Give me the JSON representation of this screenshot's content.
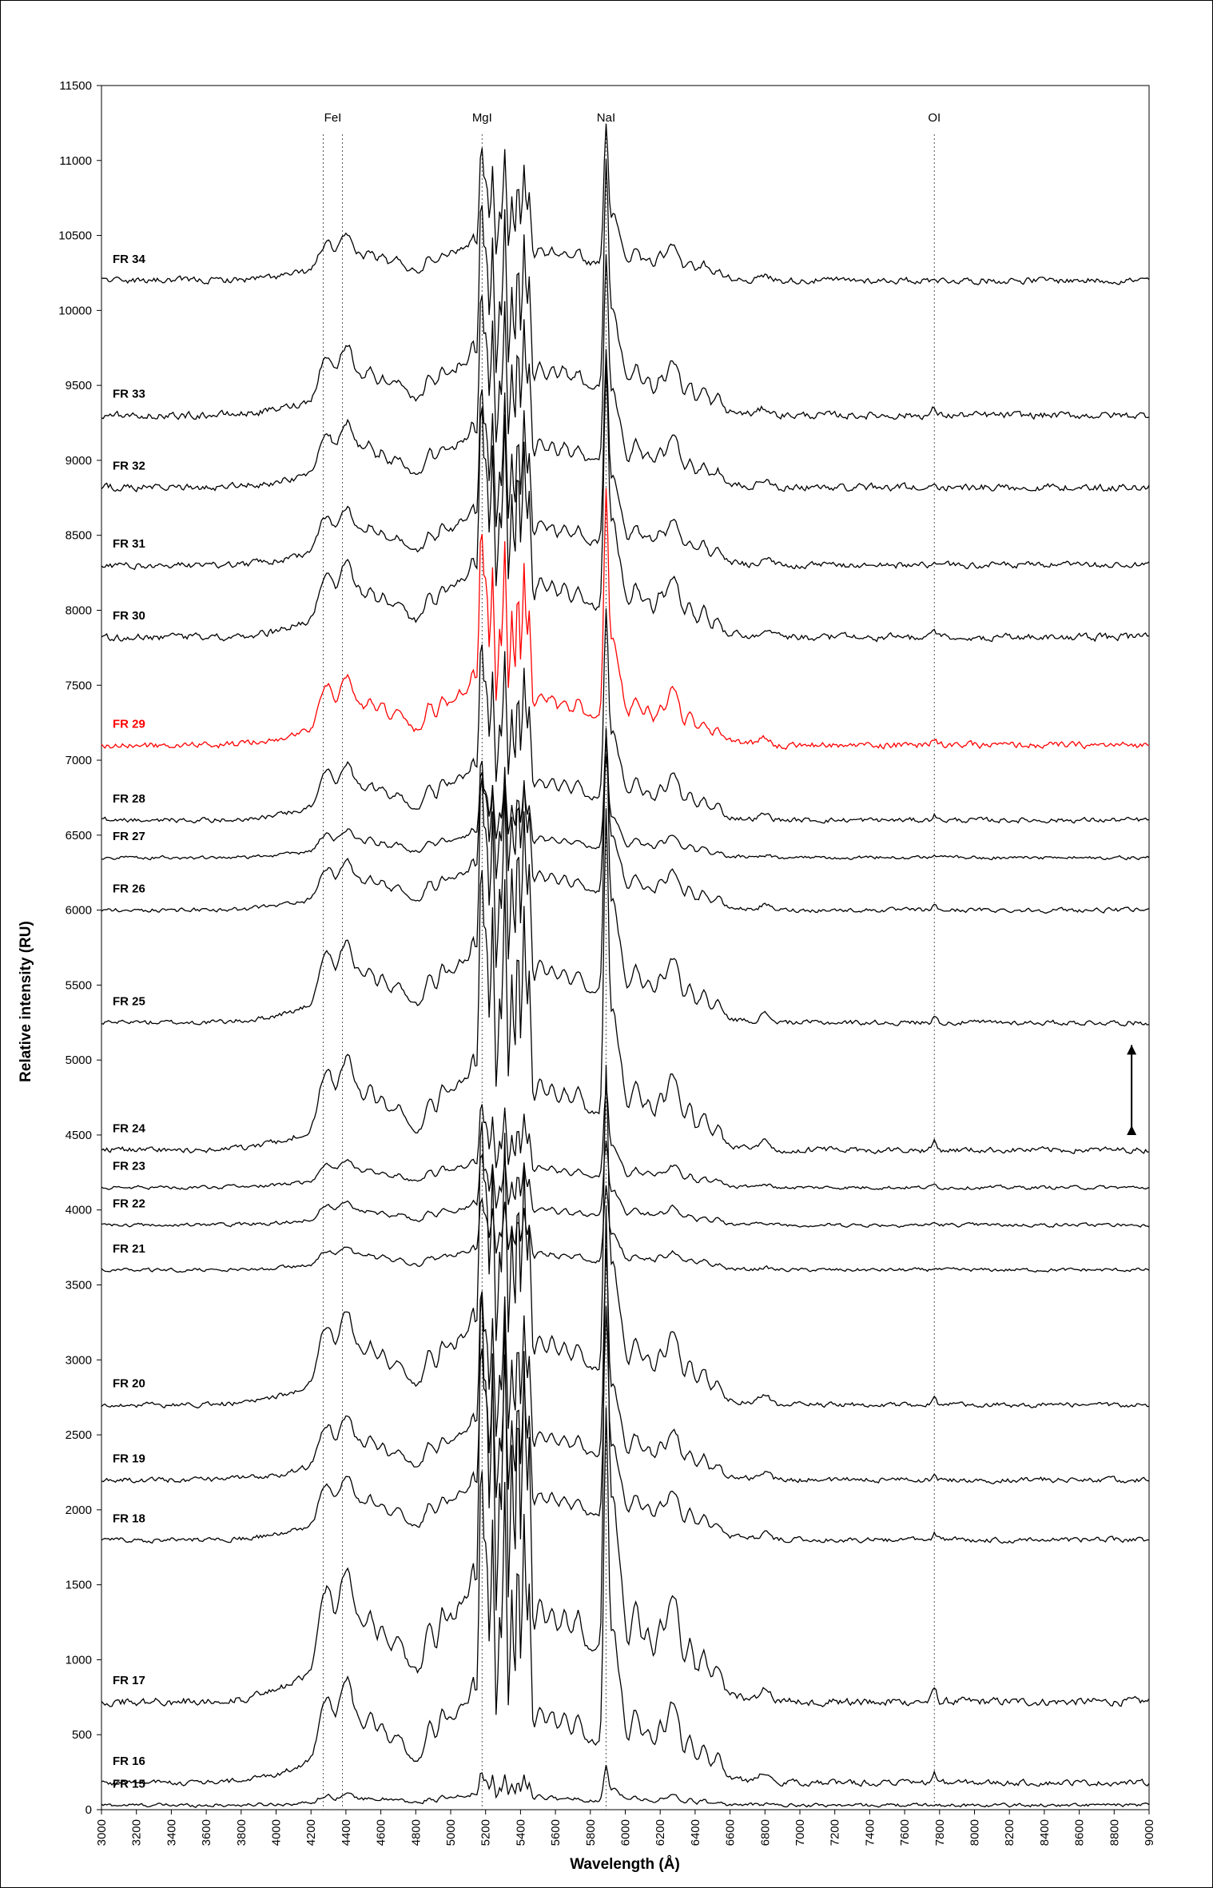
{
  "chart_data": {
    "type": "line",
    "xlabel": "Wavelength (Å)",
    "ylabel": "Relative intensity (RU)",
    "xlim": [
      3000,
      9000
    ],
    "ylim": [
      0,
      11500
    ],
    "xticks": [
      3000,
      3200,
      3400,
      3600,
      3800,
      4000,
      4200,
      4400,
      4600,
      4800,
      5000,
      5200,
      5400,
      5600,
      5800,
      6000,
      6200,
      6400,
      6600,
      6800,
      7000,
      7200,
      7400,
      7600,
      7800,
      8000,
      8200,
      8400,
      8600,
      8800,
      9000
    ],
    "yticks": [
      0,
      500,
      1000,
      1500,
      2000,
      2500,
      3000,
      3500,
      4000,
      4500,
      5000,
      5500,
      6000,
      6500,
      7000,
      7500,
      8000,
      8500,
      9000,
      9500,
      10000,
      10500,
      11000,
      11500
    ],
    "grid": false,
    "reference_lines": [
      {
        "label": "FeI",
        "x": [
          4270,
          4380
        ]
      },
      {
        "label": "MgI",
        "x": [
          5180
        ]
      },
      {
        "label": "NaI",
        "x": [
          5890
        ]
      },
      {
        "label": "OI",
        "x": [
          7770
        ]
      }
    ],
    "highlight_color": "#ff0000",
    "line_color": "#000000",
    "series": [
      {
        "name": "FR 15",
        "baseline": 30,
        "amp": 0.12,
        "noise": 10,
        "highlight": false
      },
      {
        "name": "FR 16",
        "baseline": 180,
        "amp": 1.1,
        "noise": 16,
        "highlight": false
      },
      {
        "name": "FR 17",
        "baseline": 720,
        "amp": 1.45,
        "noise": 22,
        "highlight": false
      },
      {
        "name": "FR 18",
        "baseline": 1800,
        "amp": 0.68,
        "noise": 14,
        "highlight": false
      },
      {
        "name": "FR 19",
        "baseline": 2200,
        "amp": 0.68,
        "noise": 15,
        "highlight": false
      },
      {
        "name": "FR 20",
        "baseline": 2700,
        "amp": 1.0,
        "noise": 14,
        "highlight": false
      },
      {
        "name": "FR 21",
        "baseline": 3600,
        "amp": 0.25,
        "noise": 10,
        "highlight": false
      },
      {
        "name": "FR 22",
        "baseline": 3900,
        "amp": 0.25,
        "noise": 10,
        "highlight": false
      },
      {
        "name": "FR 23",
        "baseline": 4150,
        "amp": 0.3,
        "noise": 10,
        "highlight": false
      },
      {
        "name": "FR 24",
        "baseline": 4400,
        "amp": 1.0,
        "noise": 16,
        "highlight": false
      },
      {
        "name": "FR 25",
        "baseline": 5250,
        "amp": 0.87,
        "noise": 14,
        "highlight": false
      },
      {
        "name": "FR 26",
        "baseline": 6000,
        "amp": 0.53,
        "noise": 12,
        "highlight": false
      },
      {
        "name": "FR 27",
        "baseline": 6350,
        "amp": 0.3,
        "noise": 10,
        "highlight": false
      },
      {
        "name": "FR 28",
        "baseline": 6600,
        "amp": 0.62,
        "noise": 14,
        "highlight": false
      },
      {
        "name": "FR 29",
        "baseline": 7100,
        "amp": 0.75,
        "noise": 18,
        "highlight": true
      },
      {
        "name": "FR 30",
        "baseline": 7820,
        "amp": 0.81,
        "noise": 20,
        "highlight": false
      },
      {
        "name": "FR 31",
        "baseline": 8300,
        "amp": 0.63,
        "noise": 18,
        "highlight": false
      },
      {
        "name": "FR 32",
        "baseline": 8820,
        "amp": 0.69,
        "noise": 20,
        "highlight": false
      },
      {
        "name": "FR 33",
        "baseline": 9300,
        "amp": 0.75,
        "noise": 20,
        "highlight": false
      },
      {
        "name": "FR 34",
        "baseline": 10200,
        "amp": 0.47,
        "noise": 18,
        "highlight": false
      }
    ],
    "scale_arrow": {
      "from": 4500,
      "to": 5100,
      "x": 8900
    }
  }
}
